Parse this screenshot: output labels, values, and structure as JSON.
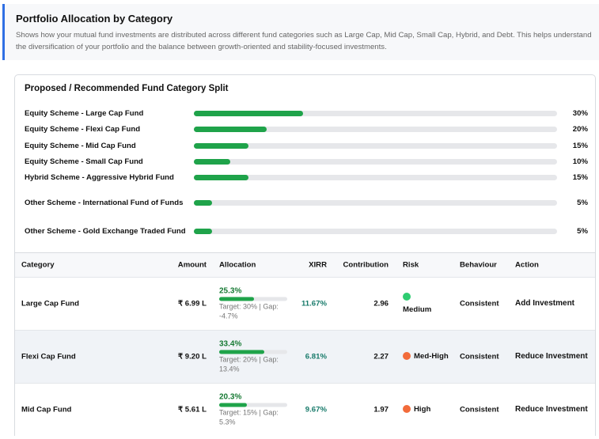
{
  "header": {
    "title": "Portfolio Allocation by Category",
    "description": "Shows how your mutual fund investments are distributed across different fund categories such as Large Cap, Mid Cap, Small Cap, Hybrid, and Debt. This helps understand the diversification of your portfolio and the balance between growth-oriented and stability-focused investments."
  },
  "split": {
    "title": "Proposed / Recommended Fund Category Split",
    "items": [
      {
        "label": "Equity Scheme - Large Cap Fund",
        "value": 30,
        "pct": "30%"
      },
      {
        "label": "Equity Scheme - Flexi Cap Fund",
        "value": 20,
        "pct": "20%"
      },
      {
        "label": "Equity Scheme - Mid Cap Fund",
        "value": 15,
        "pct": "15%"
      },
      {
        "label": "Equity Scheme - Small Cap Fund",
        "value": 10,
        "pct": "10%"
      },
      {
        "label": "Hybrid Scheme - Aggressive Hybrid Fund",
        "value": 15,
        "pct": "15%"
      },
      {
        "label": "Other Scheme - International Fund of Funds",
        "value": 5,
        "pct": "5%"
      },
      {
        "label": "Other Scheme - Gold Exchange Traded Fund",
        "value": 5,
        "pct": "5%"
      }
    ]
  },
  "table": {
    "columns": [
      "Category",
      "Amount",
      "Allocation",
      "XIRR",
      "Contribution",
      "Risk",
      "Behaviour",
      "Action"
    ],
    "rows": [
      {
        "category": "Large Cap Fund",
        "amount": "₹ 6.99 L",
        "allocation": "25.3%",
        "alloc_value": 25.3,
        "gap": "Target: 30% | Gap: -4.7%",
        "xirr": "11.67%",
        "contribution": "2.96",
        "risk": "Medium",
        "risk_color": "#2ecc71",
        "behaviour": "Consistent",
        "action": "Add Investment"
      },
      {
        "category": "Flexi Cap Fund",
        "amount": "₹ 9.20 L",
        "allocation": "33.4%",
        "alloc_value": 33.4,
        "gap": "Target: 20% | Gap: 13.4%",
        "xirr": "6.81%",
        "contribution": "2.27",
        "risk": "Med-High",
        "risk_color": "#f26b3a",
        "behaviour": "Consistent",
        "action": "Reduce Investment"
      },
      {
        "category": "Mid Cap Fund",
        "amount": "₹ 5.61 L",
        "allocation": "20.3%",
        "alloc_value": 20.3,
        "gap": "Target: 15% | Gap: 5.3%",
        "xirr": "9.67%",
        "contribution": "1.97",
        "risk": "High",
        "risk_color": "#f26b3a",
        "behaviour": "Consistent",
        "action": "Reduce Investment"
      }
    ]
  }
}
